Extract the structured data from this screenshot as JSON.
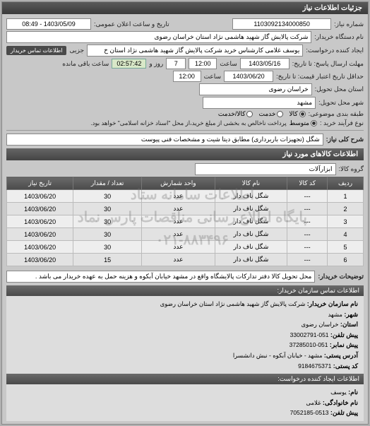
{
  "header": {
    "title": "جزئیات اطلاعات نیاز"
  },
  "need_no": {
    "label": "شماره نیاز:",
    "value": "1103092134000850"
  },
  "announce": {
    "label": "تاریخ و ساعت اعلان عمومی:",
    "value": "1403/05/09 - 08:49"
  },
  "buyer_org": {
    "label": "نام دستگاه خریدار:",
    "value": "شرکت پالایش گاز شهید هاشمی نژاد   استان خراسان رضوی"
  },
  "requester": {
    "label": "ایجاد کننده درخواست:",
    "value": "یوسف غلامی کارشناس خرید شرکت پالایش گاز شهید هاشمی نژاد   استان خ"
  },
  "contact_btn": "اطلاعات تماس خریدار",
  "deadline": {
    "label": "مهلت ارسال پاسخ: تا تاریخ:",
    "date": "1403/05/16",
    "time_lbl": "ساعت",
    "time": "12:00",
    "left_lbl": "روز و",
    "days": "7",
    "countdown": "02:57:42",
    "remain": "ساعت باقی مانده"
  },
  "validity": {
    "label": "حداقل تاریخ اعتبار قیمت: تا تاریخ:",
    "date": "1403/06/20",
    "time_lbl": "ساعت",
    "time": "12:00"
  },
  "province": {
    "label": "استان محل تحویل:",
    "value": "خراسان رضوی"
  },
  "city": {
    "label": "شهر محل تحویل:",
    "value": "مشهد"
  },
  "pkg": {
    "label": "طبقه بندی موضوعی:",
    "opts": [
      "کالا",
      "خدمت",
      "کالا/خدمت"
    ],
    "sel": 0
  },
  "process": {
    "label": "نوع فرآیند خرید :",
    "opts": [
      "متوسط"
    ],
    "sel": 0,
    "note": "پرداخت ناخالص به بخشی از مبلغ خرید،از محل \"اسناد خزانه اسلامی\" خواهد بود."
  },
  "subject": {
    "label": "شرح کلی نیاز:",
    "value": "شگل (تجهیزات باربرداری) مطابق دیتا شیت و مشخصات فنی پیوست"
  },
  "goods_hdr": "اطلاعات کالاهای مورد نیاز",
  "group": {
    "label": "گروه کالا:",
    "value": "ابزارآلات"
  },
  "table": {
    "cols": [
      "ردیف",
      "کد کالا",
      "نام کالا",
      "واحد شمارش",
      "تعداد / مقدار",
      "تاریخ نیاز"
    ],
    "rows": [
      [
        "1",
        "---",
        "شگل ناف دار",
        "عدد",
        "30",
        "1403/06/20"
      ],
      [
        "2",
        "---",
        "شگل ناف دار",
        "عدد",
        "30",
        "1403/06/20"
      ],
      [
        "3",
        "---",
        "شگل ناف دار",
        "عدد",
        "30",
        "1403/06/20"
      ],
      [
        "4",
        "---",
        "شگل ناف دار",
        "عدد",
        "30",
        "1403/06/20"
      ],
      [
        "5",
        "---",
        "شگل ناف دار",
        "عدد",
        "30",
        "1403/06/20"
      ],
      [
        "6",
        "---",
        "شگل ناف دار",
        "عدد",
        "15",
        "1403/06/20"
      ]
    ]
  },
  "watermark": {
    "l1": "اطلاعات سامانه ستاد",
    "l2": "پایگاه اطلاع رسانی مناقصات پارس نماد",
    "l3": "۰۲۱-۸۸۳۴۹۶"
  },
  "buyer_note": {
    "label": "توضیحات خریدار:",
    "value": "محل تحویل کالا دفتر تدارکات پالایشگاه واقع در مشهد خیابان آبکوه و هزینه حمل به عهده خریدار می باشد ."
  },
  "contact_hdr": "اطلاعات تماس سازمان خریدار:",
  "org_name": {
    "label": "نام سازمان خریدار:",
    "value": "شرکت پالایش گاز شهید هاشمی نژاد استان خراسان رضوی"
  },
  "c_city": {
    "label": "شهر:",
    "value": "مشهد"
  },
  "c_prov": {
    "label": "استان:",
    "value": "خراسان رضوی"
  },
  "c_tel": {
    "label": "پیش تلفن:",
    "value": "051-33002791"
  },
  "c_fax": {
    "label": "پیش نمابر:",
    "value": "051-37285010"
  },
  "c_addr": {
    "label": "آدرس پستی:",
    "value": "مشهد - خیابان آبکوه - نبش دانشسرا"
  },
  "c_post": {
    "label": "کد پستی:",
    "value": "9184675371"
  },
  "creator_hdr": "اطلاعات ایجاد کننده درخواست:",
  "cr_name": {
    "label": "نام:",
    "value": "یوسف"
  },
  "cr_family": {
    "label": "نام خانوادگی:",
    "value": "غلامی"
  },
  "cr_tel": {
    "label": "پیش تلفن:",
    "value": "0513-7052185"
  }
}
